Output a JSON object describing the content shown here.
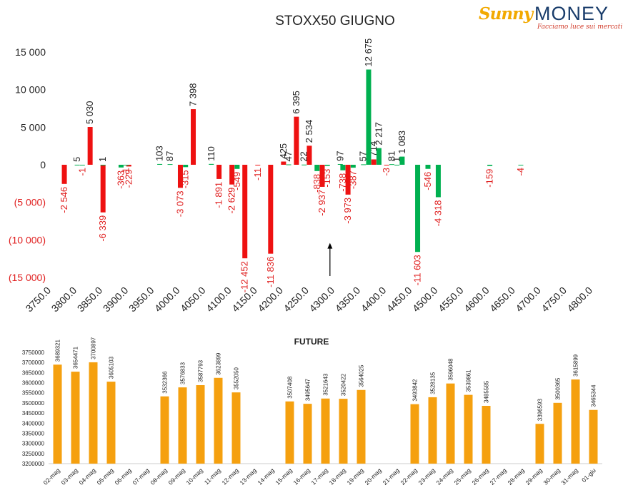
{
  "logo": {
    "brand_a": "Sunny",
    "brand_b": "MONEY",
    "tagline": "Facciamo luce sui mercati"
  },
  "colors": {
    "positive": "#00b050",
    "negative": "#ee1111",
    "future": "#f5a00f",
    "text": "#222222",
    "neg_text": "#e02020"
  },
  "chart_data": [
    {
      "type": "bar",
      "title": "STOXX50 GIUGNO",
      "ylim": [
        -15000,
        15000
      ],
      "y_ticks": [
        {
          "v": 15000,
          "label": "15 000"
        },
        {
          "v": 10000,
          "label": "10 000"
        },
        {
          "v": 5000,
          "label": "5 000"
        },
        {
          "v": 0,
          "label": "0"
        },
        {
          "v": -5000,
          "label": "(5 000)"
        },
        {
          "v": -10000,
          "label": "(10 000)"
        },
        {
          "v": -15000,
          "label": "(15 000)"
        }
      ],
      "x_range": [
        3750,
        4800
      ],
      "x_ticks": [
        "3750.0",
        "3800.0",
        "3850.0",
        "3900.0",
        "3950.0",
        "4000.0",
        "4050.0",
        "4100.0",
        "4150.0",
        "4200.0",
        "4250.0",
        "4300.0",
        "4350.0",
        "4400.0",
        "4450.0",
        "4500.0",
        "4550.0",
        "4600.0",
        "4650.0",
        "4700.0",
        "4750.0",
        "4800.0"
      ],
      "series": [
        {
          "color": "red",
          "points": [
            [
              3775,
              -2546,
              "-2 546"
            ],
            [
              3825,
              5030,
              "5 030"
            ],
            [
              3850,
              -6339,
              "-6 339"
            ],
            [
              3900,
              -229,
              "-229"
            ],
            [
              4000,
              -3073,
              "-3 073"
            ],
            [
              4025,
              7398,
              "7 398"
            ],
            [
              4075,
              -1891,
              "-1 891"
            ],
            [
              4100,
              -2629,
              "-2 629"
            ],
            [
              4125,
              -12452,
              "-12 452"
            ],
            [
              4150,
              -11,
              "-11"
            ],
            [
              4175,
              -11836,
              "-11 836"
            ],
            [
              4200,
              425,
              "425"
            ],
            [
              4225,
              6395,
              "6 395"
            ],
            [
              4250,
              2534,
              "2 534"
            ],
            [
              4275,
              -2937,
              "-2 937"
            ],
            [
              4325,
              -3973,
              "-3 973"
            ],
            [
              4375,
              714,
              "714"
            ],
            [
              4400,
              -3,
              "-3"
            ]
          ]
        },
        {
          "color": "green",
          "points": [
            [
              3800,
              5,
              "5"
            ],
            [
              3810,
              -1,
              "-1"
            ],
            [
              3850,
              1,
              "1"
            ],
            [
              3885,
              -363,
              "-363"
            ],
            [
              3895,
              -1,
              "-1"
            ],
            [
              3960,
              103,
              "103"
            ],
            [
              3980,
              87,
              "87"
            ],
            [
              4010,
              -315,
              "-315"
            ],
            [
              4060,
              110,
              "110"
            ],
            [
              4110,
              -549,
              "-549"
            ],
            [
              4210,
              47,
              "47"
            ],
            [
              4240,
              22,
              "22"
            ],
            [
              4265,
              -838,
              "-838"
            ],
            [
              4285,
              -153,
              "-153"
            ],
            [
              4310,
              97,
              "97"
            ],
            [
              4315,
              -738,
              "-738"
            ],
            [
              4335,
              -387,
              "-387"
            ],
            [
              4355,
              57,
              "57"
            ],
            [
              4365,
              12675,
              "12 675"
            ],
            [
              4385,
              2217,
              "2 217"
            ],
            [
              4410,
              81,
              "81"
            ],
            [
              4420,
              1,
              "1"
            ],
            [
              4430,
              1083,
              "1 083"
            ],
            [
              4460,
              -11603,
              "-11 603"
            ],
            [
              4480,
              -546,
              "-546"
            ],
            [
              4500,
              -4318,
              "-4 318"
            ],
            [
              4600,
              -159,
              "-159"
            ],
            [
              4660,
              -4,
              "-4"
            ]
          ]
        }
      ],
      "arrow": {
        "x": 4290,
        "y_from": -15000,
        "y_to": -10500
      }
    },
    {
      "type": "bar",
      "title": "FUTURE",
      "ylim": [
        3200000,
        3750000
      ],
      "y_ticks": [
        3200000,
        3250000,
        3300000,
        3350000,
        3400000,
        3450000,
        3500000,
        3550000,
        3600000,
        3650000,
        3700000,
        3750000
      ],
      "categories": [
        "02-mag",
        "03-mag",
        "04-mag",
        "05-mag",
        "06-mag",
        "07-mag",
        "08-mag",
        "09-mag",
        "10-mag",
        "11-mag",
        "12-mag",
        "13-mag",
        "14-mag",
        "15-mag",
        "16-mag",
        "17-mag",
        "18-mag",
        "19-mag",
        "20-mag",
        "21-mag",
        "22-mag",
        "23-mag",
        "24-mag",
        "25-mag",
        "26-mag",
        "27-mag",
        "28-mag",
        "29-mag",
        "30-mag",
        "31-mag",
        "01-giu"
      ],
      "values": [
        3689321,
        3654471,
        3700897,
        3605103,
        null,
        null,
        3532366,
        3576833,
        3587793,
        3623899,
        3552050,
        null,
        null,
        3507408,
        3495647,
        3521643,
        3520422,
        3564025,
        null,
        null,
        3493842,
        3528135,
        3596048,
        3539861,
        3485585,
        null,
        null,
        3396593,
        3500365,
        3615899,
        3465344
      ]
    }
  ]
}
